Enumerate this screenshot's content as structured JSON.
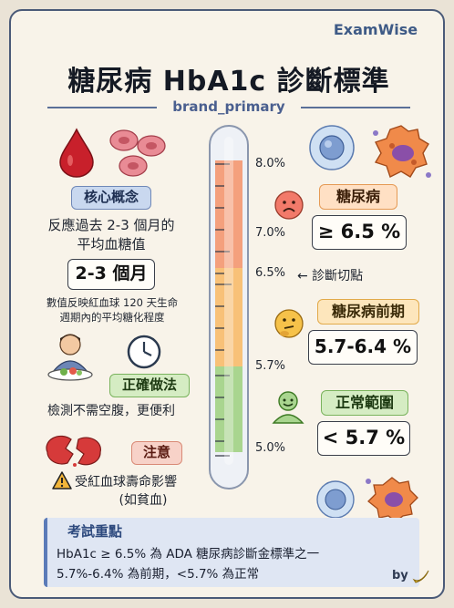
{
  "brand": "ExamWise",
  "title": "糖尿病 HbA1c 診斷標準",
  "subtitle": "brand_primary",
  "left": {
    "core_label": "核心概念",
    "core_line1": "反應過去 2-3 個月的",
    "core_line2": "平均血糖值",
    "months_box": "2-3 個月",
    "detail_line1": "數值反映紅血球 120 天生命",
    "detail_line2": "週期內的平均糖化程度",
    "correct_label": "正確做法",
    "correct_text": "檢測不需空腹，更便利",
    "caution_label": "注意",
    "caution_line1": "受紅血球壽命影響",
    "caution_line2": "(如貧血)"
  },
  "thermometer": {
    "ticks": [
      "8.0%",
      "7.0%",
      "6.5%",
      "5.7%",
      "5.0%"
    ],
    "cutoff_label": "← 診斷切點"
  },
  "right": {
    "diabetes_label": "糖尿病",
    "diabetes_value": "≥ 6.5 %",
    "prediabetes_label": "糖尿病前期",
    "prediabetes_value": "5.7-6.4 %",
    "normal_label": "正常範圍",
    "normal_value": "< 5.7 %"
  },
  "exam": {
    "label": "考試重點",
    "line1": "HbA1c ≥ 6.5% 為 ADA 糖尿病診斷金標準之一",
    "line2": "5.7%-6.4% 為前期，<5.7% 為正常"
  },
  "signature": "by",
  "colors": {
    "diabetes": "#f4a07d",
    "prediabetes": "#f8c178",
    "normal": "#a9d58f",
    "accent": "#3e5a86"
  },
  "icons": [
    "blood-drop-icon",
    "red-blood-cells-icon",
    "person-eating-icon",
    "clock-icon",
    "broken-cell-icon",
    "warning-icon",
    "sad-face-icon",
    "thinking-face-icon",
    "smiling-person-icon",
    "white-blood-cell-icon",
    "macrophage-icon",
    "banana-icon"
  ]
}
